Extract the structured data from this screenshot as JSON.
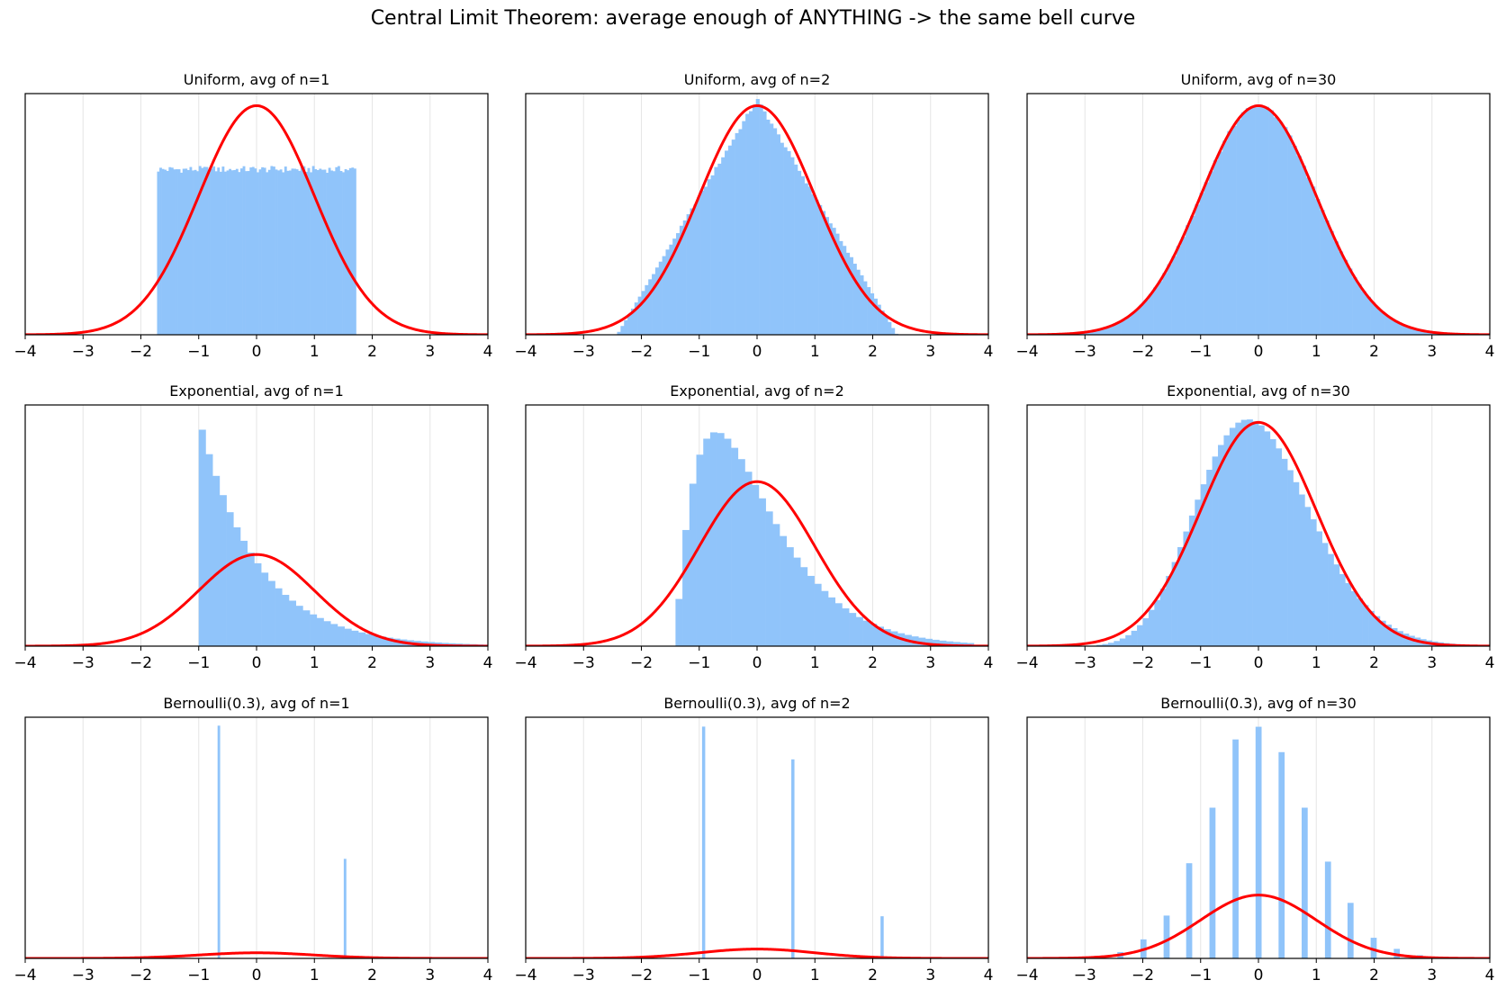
{
  "figure": {
    "title": "Central Limit Theorem: average enough of ANYTHING -> the same bell curve"
  },
  "colors": {
    "hist": "#90c4fa",
    "curve": "#ff0000",
    "grid": "#e6e6e6",
    "axis": "#000000"
  },
  "chart_data": [
    {
      "type": "bar",
      "title": "Uniform, avg of n=1",
      "xlim": [
        -4,
        4
      ],
      "xticks": [
        "−4",
        "−3",
        "−2",
        "−1",
        "0",
        "1",
        "2",
        "3",
        "4"
      ],
      "grid": "x",
      "ymax": 0.42,
      "bar_x": [
        -1.72,
        1.72
      ],
      "bar_width": 0.04,
      "bar_heights": [
        0.288
      ],
      "noise": 0.006,
      "series": [
        {
          "type": "line",
          "normal_pdf": {
            "mean": 0,
            "sd": 1,
            "scale": 1
          }
        }
      ]
    },
    {
      "type": "bar",
      "title": "Uniform, avg of n=2",
      "xlim": [
        -4,
        4
      ],
      "xticks": [
        "−4",
        "−3",
        "−2",
        "−1",
        "0",
        "1",
        "2",
        "3",
        "4"
      ],
      "grid": "x",
      "ymax": 0.42,
      "bar_x": [
        -2.42,
        2.42
      ],
      "bar_width": 0.06,
      "triangle_peak": 0.41,
      "series": [
        {
          "type": "line",
          "normal_pdf": {
            "mean": 0,
            "sd": 1,
            "scale": 1
          }
        }
      ]
    },
    {
      "type": "bar",
      "title": "Uniform, avg of n=30",
      "xlim": [
        -4,
        4
      ],
      "xticks": [
        "−4",
        "−3",
        "−2",
        "−1",
        "0",
        "1",
        "2",
        "3",
        "4"
      ],
      "grid": "x",
      "ymax": 0.42,
      "bar_x": [
        -3.5,
        3.5
      ],
      "bar_width": 0.08,
      "normal_bins": {
        "mean": 0,
        "sd": 1,
        "scale": 1
      },
      "series": [
        {
          "type": "line",
          "normal_pdf": {
            "mean": 0,
            "sd": 1,
            "scale": 1
          }
        }
      ]
    },
    {
      "type": "bar",
      "title": "Exponential, avg of n=1",
      "xlim": [
        -4,
        4
      ],
      "xticks": [
        "−4",
        "−3",
        "−2",
        "−1",
        "0",
        "1",
        "2",
        "3",
        "4"
      ],
      "grid": "x",
      "ymax": 1.05,
      "bar_x": [
        -1.0,
        4.0
      ],
      "bar_width": 0.12,
      "shifted_gamma": {
        "k": 1
      },
      "series": [
        {
          "type": "line",
          "normal_pdf": {
            "mean": 0,
            "sd": 1,
            "scale": 1
          }
        }
      ]
    },
    {
      "type": "bar",
      "title": "Exponential, avg of n=2",
      "xlim": [
        -4,
        4
      ],
      "xticks": [
        "−4",
        "−3",
        "−2",
        "−1",
        "0",
        "1",
        "2",
        "3",
        "4"
      ],
      "grid": "x",
      "ymax": 0.585,
      "bar_x": [
        -1.41,
        3.7
      ],
      "bar_width": 0.12,
      "shifted_gamma": {
        "k": 2
      },
      "series": [
        {
          "type": "line",
          "normal_pdf": {
            "mean": 0,
            "sd": 1,
            "scale": 1
          }
        }
      ]
    },
    {
      "type": "bar",
      "title": "Exponential, avg of n=30",
      "xlim": [
        -4,
        4
      ],
      "xticks": [
        "−4",
        "−3",
        "−2",
        "−1",
        "0",
        "1",
        "2",
        "3",
        "4"
      ],
      "grid": "x",
      "ymax": 0.43,
      "bar_x": [
        -2.8,
        4.0
      ],
      "bar_width": 0.1,
      "shifted_gamma": {
        "k": 30
      },
      "series": [
        {
          "type": "line",
          "normal_pdf": {
            "mean": 0,
            "sd": 1,
            "scale": 1
          }
        }
      ]
    },
    {
      "type": "bar",
      "title": "Bernoulli(0.3), avg of n=1",
      "xlim": [
        -4,
        4
      ],
      "xticks": [
        "−4",
        "−3",
        "−2",
        "−1",
        "0",
        "1",
        "2",
        "3",
        "4"
      ],
      "grid": "x",
      "ymax": 17.2,
      "spikes": {
        "x": [
          -0.654,
          1.528
        ],
        "heights": [
          16.6,
          7.1
        ],
        "width": 0.04
      },
      "series": [
        {
          "type": "line",
          "normal_pdf": {
            "mean": 0,
            "sd": 1,
            "scale": 1
          }
        }
      ]
    },
    {
      "type": "bar",
      "title": "Bernoulli(0.3), avg of n=2",
      "xlim": [
        -4,
        4
      ],
      "xticks": [
        "−4",
        "−3",
        "−2",
        "−1",
        "0",
        "1",
        "2",
        "3",
        "4"
      ],
      "grid": "x",
      "ymax": 10.3,
      "spikes": {
        "x": [
          -0.926,
          0.617,
          2.16
        ],
        "heights": [
          9.9,
          8.5,
          1.8
        ],
        "width": 0.05
      },
      "series": [
        {
          "type": "line",
          "normal_pdf": {
            "mean": 0,
            "sd": 1,
            "scale": 1
          }
        }
      ]
    },
    {
      "type": "bar",
      "title": "Bernoulli(0.3), avg of n=30",
      "xlim": [
        -4,
        4
      ],
      "xticks": [
        "−4",
        "−3",
        "−2",
        "−1",
        "0",
        "1",
        "2",
        "3",
        "4"
      ],
      "grid": "x",
      "ymax": 1.52,
      "spikes": {
        "x": [
          -2.39,
          -1.99,
          -1.59,
          -1.2,
          -0.797,
          -0.398,
          0,
          0.398,
          0.797,
          1.2,
          1.59,
          1.99,
          2.39,
          2.79
        ],
        "heights": [
          0.04,
          0.12,
          0.27,
          0.6,
          0.95,
          1.38,
          1.46,
          1.3,
          0.95,
          0.61,
          0.35,
          0.13,
          0.06,
          0.02
        ],
        "width": 0.1
      },
      "series": [
        {
          "type": "line",
          "normal_pdf": {
            "mean": 0,
            "sd": 1,
            "scale": 1
          }
        }
      ]
    }
  ]
}
